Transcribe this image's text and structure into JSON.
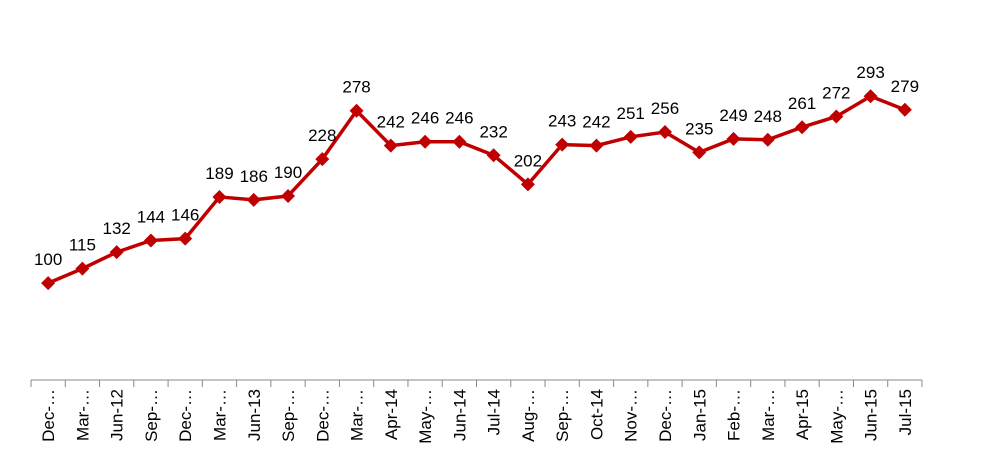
{
  "chart_data": {
    "type": "line",
    "categories": [
      "Dec-…",
      "Mar-…",
      "Jun-12",
      "Sep-…",
      "Dec-…",
      "Mar-…",
      "Jun-13",
      "Sep-…",
      "Dec-…",
      "Mar-…",
      "Apr-14",
      "May-…",
      "Jun-14",
      "Jul-14",
      "Aug-…",
      "Sep-…",
      "Oct-14",
      "Nov-…",
      "Dec-…",
      "Jan-15",
      "Feb-…",
      "Mar-…",
      "Apr-15",
      "May-…",
      "Jun-15",
      "Jul-15"
    ],
    "values": [
      100,
      115,
      132,
      144,
      146,
      189,
      186,
      190,
      228,
      278,
      242,
      246,
      246,
      232,
      202,
      243,
      242,
      251,
      256,
      235,
      249,
      248,
      261,
      272,
      293,
      279
    ],
    "color": "#c00000",
    "ylim": [
      0,
      350
    ]
  }
}
